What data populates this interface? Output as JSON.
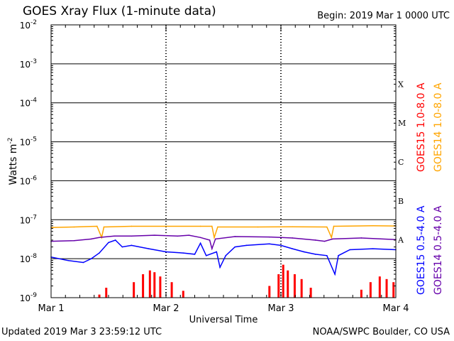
{
  "header": {
    "title": "GOES Xray Flux (1-minute data)",
    "begin": "Begin:  2019 Mar 1 0000 UTC"
  },
  "footer": {
    "updated": "Updated 2019 Mar  3 23:59:12 UTC",
    "credit": "NOAA/SWPC Boulder, CO USA"
  },
  "chart_data": {
    "type": "line",
    "title": "GOES Xray Flux (1-minute data)",
    "xlabel": "Universal Time",
    "ylabel": "Watts m",
    "ylabel_sup": "-2",
    "yscale": "log",
    "ylim": [
      1e-09,
      0.01
    ],
    "y_ticks": [
      {
        "base": "10",
        "exp": "-9"
      },
      {
        "base": "10",
        "exp": "-8"
      },
      {
        "base": "10",
        "exp": "-7"
      },
      {
        "base": "10",
        "exp": "-6"
      },
      {
        "base": "10",
        "exp": "-5"
      },
      {
        "base": "10",
        "exp": "-4"
      },
      {
        "base": "10",
        "exp": "-3"
      },
      {
        "base": "10",
        "exp": "-2"
      }
    ],
    "x_range_days": [
      0,
      3
    ],
    "x_ticks": [
      "Mar 1",
      "Mar 2",
      "Mar 3",
      "Mar 4"
    ],
    "flare_classes": [
      "A",
      "B",
      "C",
      "M",
      "X"
    ],
    "flare_class_thresholds": [
      1e-08,
      1e-07,
      1e-06,
      1e-05,
      0.0001
    ],
    "grid": true,
    "series": [
      {
        "name": "GOES15 1.0-8.0 A",
        "color": "#ff0000",
        "style": "spikes",
        "points": [
          [
            0.42,
            1.2e-09
          ],
          [
            0.48,
            1.8e-09
          ],
          [
            0.72,
            2.5e-09
          ],
          [
            0.8,
            4e-09
          ],
          [
            0.86,
            5e-09
          ],
          [
            0.9,
            4.5e-09
          ],
          [
            0.95,
            3.5e-09
          ],
          [
            1.05,
            2.5e-09
          ],
          [
            1.15,
            1.5e-09
          ],
          [
            1.9,
            2e-09
          ],
          [
            1.98,
            4e-09
          ],
          [
            2.02,
            7e-09
          ],
          [
            2.06,
            5e-09
          ],
          [
            2.12,
            4e-09
          ],
          [
            2.18,
            3e-09
          ],
          [
            2.26,
            1.8e-09
          ],
          [
            2.7,
            1.6e-09
          ],
          [
            2.78,
            2.5e-09
          ],
          [
            2.86,
            3.5e-09
          ],
          [
            2.92,
            3e-09
          ],
          [
            2.98,
            2.5e-09
          ]
        ]
      },
      {
        "name": "GOES14 1.0-8.0 A",
        "color": "#ffa500",
        "style": "line",
        "points": [
          [
            0,
            6.3e-08
          ],
          [
            0.2,
            6.5e-08
          ],
          [
            0.4,
            6.8e-08
          ],
          [
            0.44,
            3.5e-08
          ],
          [
            0.46,
            6.5e-08
          ],
          [
            0.7,
            6.8e-08
          ],
          [
            1.0,
            6.8e-08
          ],
          [
            1.3,
            6.8e-08
          ],
          [
            1.4,
            6.8e-08
          ],
          [
            1.42,
            3.5e-08
          ],
          [
            1.45,
            6.5e-08
          ],
          [
            1.8,
            6.5e-08
          ],
          [
            2.1,
            6.6e-08
          ],
          [
            2.4,
            6.5e-08
          ],
          [
            2.44,
            3.5e-08
          ],
          [
            2.46,
            6.8e-08
          ],
          [
            2.8,
            7e-08
          ],
          [
            3.0,
            6.9e-08
          ]
        ]
      },
      {
        "name": "GOES14 0.5-4.0 A",
        "color": "#6600aa",
        "style": "line",
        "points": [
          [
            0,
            2.8e-08
          ],
          [
            0.2,
            2.9e-08
          ],
          [
            0.35,
            3.2e-08
          ],
          [
            0.42,
            3.5e-08
          ],
          [
            0.55,
            3.8e-08
          ],
          [
            0.7,
            3.8e-08
          ],
          [
            0.9,
            4e-08
          ],
          [
            1.1,
            3.8e-08
          ],
          [
            1.2,
            4e-08
          ],
          [
            1.3,
            3.5e-08
          ],
          [
            1.38,
            3e-08
          ],
          [
            1.4,
            1.8e-08
          ],
          [
            1.43,
            3.2e-08
          ],
          [
            1.6,
            3.7e-08
          ],
          [
            1.9,
            3.6e-08
          ],
          [
            2.1,
            3.4e-08
          ],
          [
            2.3,
            3e-08
          ],
          [
            2.38,
            2.8e-08
          ],
          [
            2.45,
            3.2e-08
          ],
          [
            2.7,
            3.4e-08
          ],
          [
            3.0,
            3.1e-08
          ]
        ]
      },
      {
        "name": "GOES15 0.5-4.0 A",
        "color": "#0000ff",
        "style": "line",
        "points": [
          [
            0,
            1.1e-08
          ],
          [
            0.15,
            9e-09
          ],
          [
            0.28,
            8e-09
          ],
          [
            0.35,
            1e-08
          ],
          [
            0.42,
            1.4e-08
          ],
          [
            0.5,
            2.6e-08
          ],
          [
            0.56,
            3e-08
          ],
          [
            0.62,
            2e-08
          ],
          [
            0.7,
            2.2e-08
          ],
          [
            0.85,
            1.8e-08
          ],
          [
            1.0,
            1.5e-08
          ],
          [
            1.15,
            1.4e-08
          ],
          [
            1.25,
            1.3e-08
          ],
          [
            1.3,
            2.5e-08
          ],
          [
            1.35,
            1.2e-08
          ],
          [
            1.44,
            1.5e-08
          ],
          [
            1.47,
            6e-09
          ],
          [
            1.52,
            1.2e-08
          ],
          [
            1.6,
            2e-08
          ],
          [
            1.7,
            2.2e-08
          ],
          [
            1.9,
            2.4e-08
          ],
          [
            2.0,
            2.2e-08
          ],
          [
            2.1,
            1.8e-08
          ],
          [
            2.2,
            1.5e-08
          ],
          [
            2.3,
            1.3e-08
          ],
          [
            2.4,
            1.2e-08
          ],
          [
            2.47,
            4e-09
          ],
          [
            2.5,
            1.2e-08
          ],
          [
            2.6,
            1.7e-08
          ],
          [
            2.8,
            1.8e-08
          ],
          [
            3.0,
            1.7e-08
          ]
        ]
      }
    ]
  }
}
